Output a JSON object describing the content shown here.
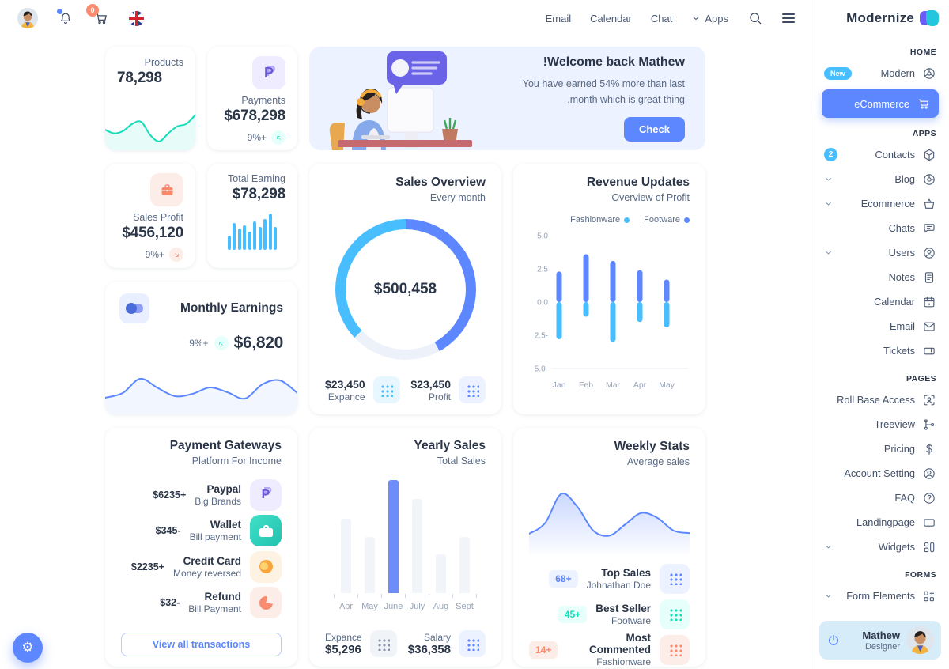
{
  "logo": {
    "text": "Modernize"
  },
  "header": {
    "nav_items": [
      {
        "label": "Email"
      },
      {
        "label": "Calendar"
      },
      {
        "label": "Chat"
      },
      {
        "label": "Apps",
        "chevron": true
      }
    ],
    "cart_badge": "0",
    "icons": [
      "avatar",
      "bell-icon",
      "cart-icon",
      "uk-flag-icon",
      "search-icon",
      "menu-icon"
    ]
  },
  "sidebar": {
    "sections": [
      {
        "title": "HOME",
        "items": [
          {
            "label": "Modern",
            "icon": "aperture",
            "badge": "New",
            "badge_style": "pill"
          },
          {
            "label": "eCommerce",
            "icon": "cart",
            "active": true
          }
        ]
      },
      {
        "title": "APPS",
        "items": [
          {
            "label": "Contacts",
            "icon": "package",
            "badge": "2",
            "badge_style": "circle"
          },
          {
            "label": "Blog",
            "icon": "blog",
            "chevron": true
          },
          {
            "label": "Ecommerce",
            "icon": "basket",
            "chevron": true
          },
          {
            "label": "Chats",
            "icon": "chat"
          },
          {
            "label": "Users",
            "icon": "user-circle",
            "chevron": true
          },
          {
            "label": "Notes",
            "icon": "note"
          },
          {
            "label": "Calendar",
            "icon": "calendar"
          },
          {
            "label": "Email",
            "icon": "mail"
          },
          {
            "label": "Tickets",
            "icon": "ticket"
          }
        ]
      },
      {
        "title": "PAGES",
        "items": [
          {
            "label": "Roll Base Access",
            "icon": "shield-user"
          },
          {
            "label": "Treeview",
            "icon": "tree"
          },
          {
            "label": "Pricing",
            "icon": "dollar"
          },
          {
            "label": "Account Setting",
            "icon": "user-circle"
          },
          {
            "label": "FAQ",
            "icon": "help"
          },
          {
            "label": "Landingpage",
            "icon": "layout"
          },
          {
            "label": "Widgets",
            "icon": "widgets",
            "chevron": true
          }
        ]
      },
      {
        "title": "FORMS",
        "items": [
          {
            "label": "Form Elements",
            "icon": "form",
            "chevron": true
          }
        ]
      }
    ],
    "profile": {
      "name": "Mathew",
      "role": "Designer"
    }
  },
  "cards": {
    "products": {
      "label": "Products",
      "value": "78,298"
    },
    "payments": {
      "label": "Payments",
      "value": "$678,298",
      "delta": "9%+"
    },
    "banner": {
      "title": "Welcome back Mathew!",
      "body": "You have earned 54% more than last month which is great thing.",
      "button": "Check"
    },
    "sales_profit": {
      "label": "Sales Profit",
      "value": "$456,120",
      "delta": "9%+"
    },
    "total_earning": {
      "label": "Total Earning",
      "value": "$78,298"
    },
    "monthly_earnings": {
      "title": "Monthly Earnings",
      "delta": "9%+",
      "value": "$6,820"
    },
    "sales_overview": {
      "title": "Sales Overview",
      "subtitle": "Every month",
      "center_value": "$500,458",
      "stats": [
        {
          "amount": "$23,450",
          "label": "Expance",
          "color": "secondary"
        },
        {
          "amount": "$23,450",
          "label": "Profit",
          "color": "primary"
        }
      ]
    },
    "revenue_updates": {
      "title": "Revenue Updates",
      "subtitle": "Overview of Profit"
    },
    "payment_gateways": {
      "title": "Payment Gateways",
      "subtitle": "Platform For Income",
      "rows": [
        {
          "name": "Paypal",
          "desc": "Big Brands",
          "amount": "$6235+",
          "icon": "paypal"
        },
        {
          "name": "Wallet",
          "desc": "Bill payment",
          "amount": "$345-",
          "icon": "wallet"
        },
        {
          "name": "Credit Card",
          "desc": "Money reversed",
          "amount": "$2235+",
          "icon": "credit-card"
        },
        {
          "name": "Refund",
          "desc": "Bill Payment",
          "amount": "$32-",
          "icon": "refund"
        }
      ],
      "button": "View all transactions"
    },
    "yearly_sales": {
      "title": "Yearly Sales",
      "subtitle": "Total Sales",
      "stats": [
        {
          "label": "Expance",
          "amount": "$5,296",
          "color": "muted"
        },
        {
          "label": "Salary",
          "amount": "$36,358",
          "color": "primary"
        }
      ]
    },
    "weekly_stats": {
      "title": "Weekly Stats",
      "subtitle": "Average sales",
      "rows": [
        {
          "name": "Top Sales",
          "desc": "Johnathan Doe",
          "badge": "68+",
          "color": "primary"
        },
        {
          "name": "Best Seller",
          "desc": "Footware",
          "badge": "45+",
          "color": "success"
        },
        {
          "name": "Most Commented",
          "desc": "Fashionware",
          "badge": "14+",
          "color": "error"
        }
      ]
    }
  },
  "colors": {
    "primary": "#5D87FF",
    "secondary": "#49BEFF",
    "success": "#13DEB9",
    "error": "#FA896B",
    "warning": "#FFAE1F",
    "text_dark": "#2A3547",
    "text_muted": "#5A6A85"
  },
  "chart_data": [
    {
      "id": "products-sparkline",
      "type": "area",
      "title": "Products",
      "values": [
        45,
        35,
        42,
        62,
        68,
        30,
        12,
        35,
        55,
        62,
        88
      ],
      "color": "#13DEB9",
      "grid": false
    },
    {
      "id": "total-earning-bars",
      "type": "bar",
      "title": "Total Earning",
      "values": [
        40,
        75,
        58,
        68,
        50,
        78,
        62,
        85,
        100,
        62
      ],
      "color": "#49BEFF",
      "grid": false
    },
    {
      "id": "sales-overview-donut",
      "type": "pie",
      "title": "Sales Overview",
      "center_label": "$500,458",
      "segments": [
        {
          "name": "Profit",
          "pct": 42,
          "color": "#5D87FF"
        },
        {
          "name": "Other",
          "pct": 21,
          "color": "#EDF2FA"
        },
        {
          "name": "Expance",
          "pct": 37,
          "color": "#49BEFF"
        }
      ]
    },
    {
      "id": "revenue-updates",
      "type": "bar",
      "title": "Revenue Updates",
      "categories": [
        "Jan",
        "Feb",
        "Mar",
        "Apr",
        "May"
      ],
      "series": [
        {
          "name": "Footware",
          "color": "#5D87FF",
          "values": [
            2.3,
            3.6,
            3.1,
            2.4,
            1.7
          ]
        },
        {
          "name": "Fashionware",
          "color": "#49BEFF",
          "values": [
            -2.8,
            -1.1,
            -3.0,
            -1.5,
            -1.9
          ]
        }
      ],
      "ylim": [
        -5,
        5
      ],
      "yticks": [
        "5.0",
        "2.5",
        "0.0",
        "2.5-",
        "5.0-"
      ],
      "legend": [
        {
          "name": "Fashionware",
          "color": "#49BEFF"
        },
        {
          "name": "Footware",
          "color": "#5D87FF"
        }
      ],
      "legend_position": "top-right",
      "grid": false
    },
    {
      "id": "monthly-earnings-line",
      "type": "area",
      "title": "Monthly Earnings",
      "values": [
        30,
        42,
        78,
        55,
        34,
        40,
        56,
        44,
        28,
        64,
        74,
        42
      ],
      "color": "#5D87FF",
      "grid": false
    },
    {
      "id": "yearly-sales",
      "type": "bar",
      "title": "Yearly Sales",
      "categories": [
        "Apr",
        "May",
        "June",
        "July",
        "Aug",
        "Sept"
      ],
      "values": [
        66,
        50,
        100,
        83,
        34,
        50
      ],
      "highlight": "June",
      "bar_color": "#F1F5FA",
      "highlight_color": "#6D8DF8",
      "grid": false
    },
    {
      "id": "weekly-stats-line",
      "type": "area",
      "title": "Weekly Stats",
      "values": [
        25,
        42,
        88,
        68,
        30,
        22,
        40,
        58,
        50,
        30,
        26
      ],
      "color": "#5D87FF",
      "grid": false
    }
  ],
  "fab": {
    "icon": "gear-icon"
  }
}
